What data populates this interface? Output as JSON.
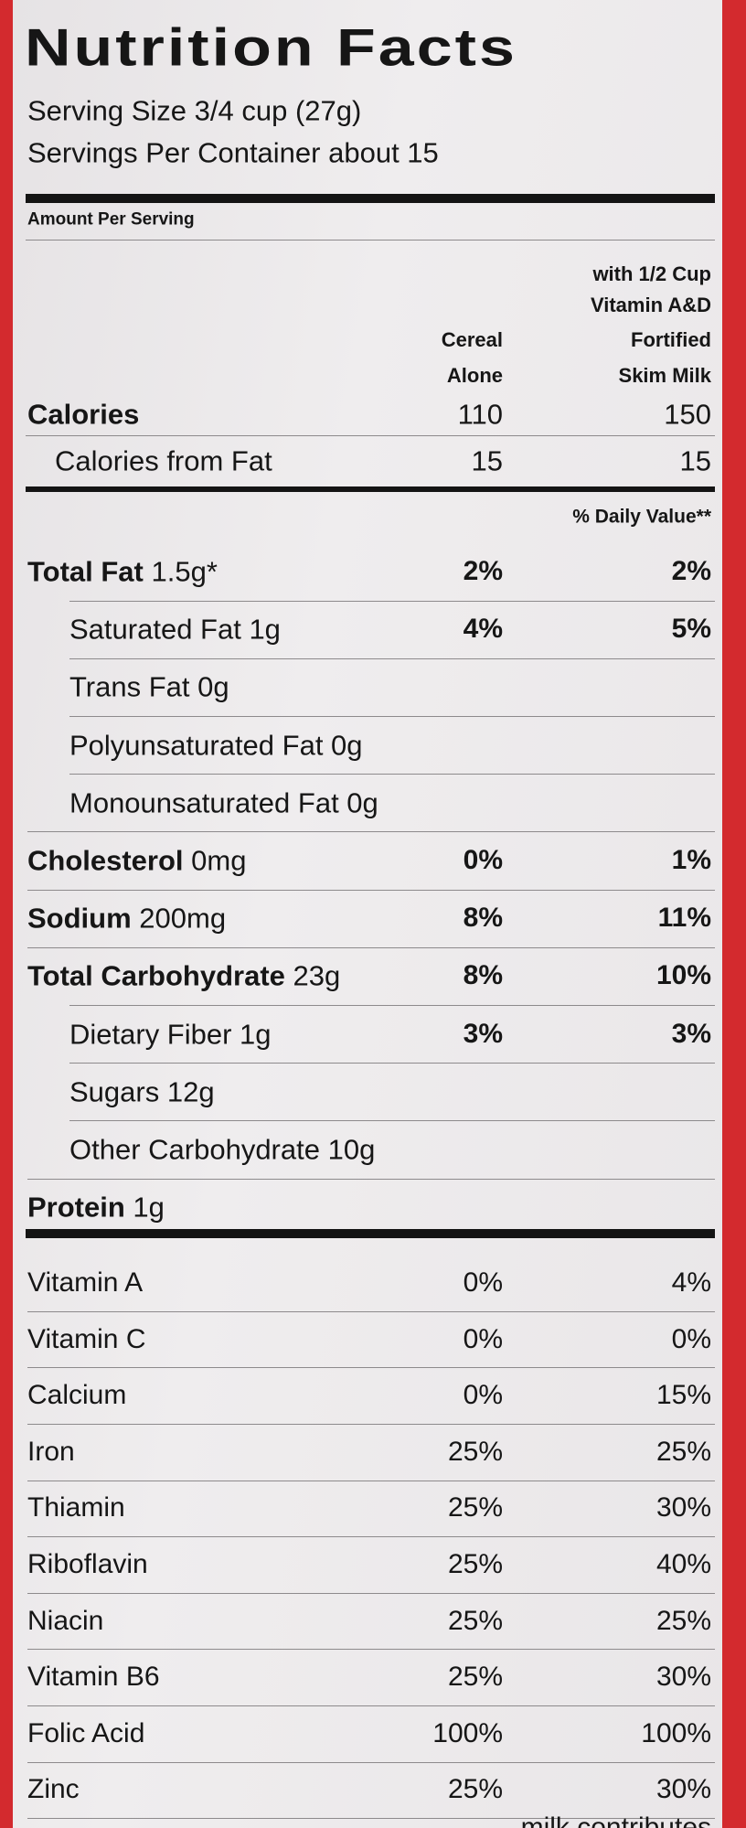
{
  "title": "Nutrition Facts",
  "serving_size": "Serving Size 3/4 cup (27g)",
  "servings_per_container": "Servings Per Container about 15",
  "amount_per_serving": "Amount Per Serving",
  "columns": {
    "cereal": [
      "Cereal",
      "Alone"
    ],
    "milk": [
      "with 1/2 Cup",
      "Vitamin A&D",
      "Fortified",
      "Skim Milk"
    ]
  },
  "calories": {
    "label": "Calories",
    "cereal": "110",
    "milk": "150"
  },
  "calories_from_fat": {
    "label": "Calories from Fat",
    "cereal": "15",
    "milk": "15"
  },
  "daily_value_header": "% Daily Value**",
  "nutrients": [
    {
      "name": "Total Fat",
      "amount": "1.5g*",
      "bold": true,
      "cereal": "2%",
      "milk": "2%"
    },
    {
      "name": "Saturated Fat 1g",
      "indent": true,
      "cereal": "4%",
      "milk": "5%"
    },
    {
      "name": "Trans Fat 0g",
      "indent": true
    },
    {
      "name": "Polyunsaturated Fat 0g",
      "indent": true
    },
    {
      "name": "Monounsaturated Fat 0g",
      "indent": true
    },
    {
      "name": "Cholesterol",
      "amount": "0mg",
      "bold": true,
      "cereal": "0%",
      "milk": "1%"
    },
    {
      "name": "Sodium",
      "amount": "200mg",
      "bold": true,
      "cereal": "8%",
      "milk": "11%"
    },
    {
      "name": "Total Carbohydrate",
      "amount": "23g",
      "bold": true,
      "cereal": "8%",
      "milk": "10%"
    },
    {
      "name": "Dietary Fiber 1g",
      "indent": true,
      "cereal": "3%",
      "milk": "3%"
    },
    {
      "name": "Sugars 12g",
      "indent": true
    },
    {
      "name": "Other Carbohydrate 10g",
      "indent": true
    },
    {
      "name": "Protein",
      "amount": "1g",
      "bold": true
    }
  ],
  "vitamins": [
    {
      "name": "Vitamin A",
      "cereal": "0%",
      "milk": "4%"
    },
    {
      "name": "Vitamin C",
      "cereal": "0%",
      "milk": "0%"
    },
    {
      "name": "Calcium",
      "cereal": "0%",
      "milk": "15%"
    },
    {
      "name": "Iron",
      "cereal": "25%",
      "milk": "25%"
    },
    {
      "name": "Thiamin",
      "cereal": "25%",
      "milk": "30%"
    },
    {
      "name": "Riboflavin",
      "cereal": "25%",
      "milk": "40%"
    },
    {
      "name": "Niacin",
      "cereal": "25%",
      "milk": "25%"
    },
    {
      "name": "Vitamin B6",
      "cereal": "25%",
      "milk": "30%"
    },
    {
      "name": "Folic Acid",
      "cereal": "100%",
      "milk": "100%"
    },
    {
      "name": "Zinc",
      "cereal": "25%",
      "milk": "30%"
    }
  ],
  "footnote": "milk contributes"
}
